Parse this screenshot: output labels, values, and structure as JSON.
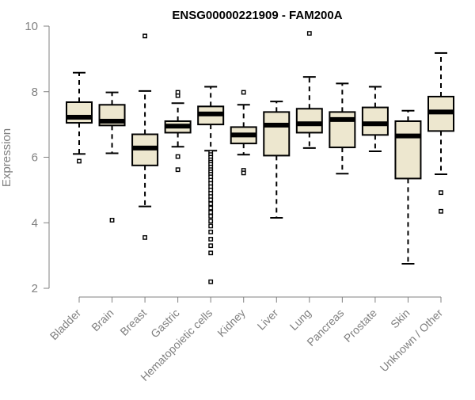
{
  "chart_data": {
    "type": "boxplot",
    "title": "ENSG00000221909 - FAM200A",
    "ylabel": "Expression",
    "ylim": [
      2,
      10
    ],
    "yticks": [
      "2",
      "4",
      "6",
      "8",
      "10"
    ],
    "grid": false,
    "colors": {
      "box_fill": "#ede7cf",
      "box_stroke": "#000000",
      "axis": "#808080",
      "tick_label": "#808080",
      "title": "#000000"
    },
    "categories": [
      "Bladder",
      "Brain",
      "Breast",
      "Gastric",
      "Hematopoietic cells",
      "Kidney",
      "Liver",
      "Lung",
      "Pancreas",
      "Prostate",
      "Skin",
      "Unknown / Other"
    ],
    "boxes": [
      {
        "category": "Bladder",
        "whisker_low": 6.1,
        "q1": 7.05,
        "median": 7.22,
        "q3": 7.68,
        "whisker_high": 8.58,
        "outliers": [
          5.88
        ]
      },
      {
        "category": "Brain",
        "whisker_low": 6.12,
        "q1": 6.97,
        "median": 7.1,
        "q3": 7.6,
        "whisker_high": 7.98,
        "outliers": [
          4.08
        ]
      },
      {
        "category": "Breast",
        "whisker_low": 4.5,
        "q1": 5.75,
        "median": 6.28,
        "q3": 6.7,
        "whisker_high": 8.02,
        "outliers": [
          3.55,
          9.7
        ]
      },
      {
        "category": "Gastric",
        "whisker_low": 6.32,
        "q1": 6.75,
        "median": 6.95,
        "q3": 7.1,
        "whisker_high": 7.65,
        "outliers": [
          6.02,
          5.62,
          7.88,
          7.98
        ]
      },
      {
        "category": "Hematopoietic cells",
        "whisker_low": 6.2,
        "q1": 7.0,
        "median": 7.32,
        "q3": 7.55,
        "whisker_high": 8.15,
        "outliers": [
          6.15,
          6.08,
          6.0,
          5.92,
          5.85,
          5.78,
          5.7,
          5.62,
          5.55,
          5.48,
          5.4,
          5.3,
          5.2,
          5.1,
          5.0,
          4.9,
          4.8,
          4.7,
          4.58,
          4.45,
          4.32,
          4.2,
          4.05,
          3.9,
          3.72,
          3.5,
          3.3,
          3.08,
          2.2
        ]
      },
      {
        "category": "Kidney",
        "whisker_low": 6.08,
        "q1": 6.42,
        "median": 6.68,
        "q3": 6.92,
        "whisker_high": 7.6,
        "outliers": [
          5.6,
          5.52,
          7.98
        ]
      },
      {
        "category": "Liver",
        "whisker_low": 4.15,
        "q1": 6.05,
        "median": 6.98,
        "q3": 7.38,
        "whisker_high": 7.7,
        "outliers": []
      },
      {
        "category": "Lung",
        "whisker_low": 6.28,
        "q1": 6.75,
        "median": 7.02,
        "q3": 7.48,
        "whisker_high": 8.45,
        "outliers": [
          9.78
        ]
      },
      {
        "category": "Pancreas",
        "whisker_low": 5.5,
        "q1": 6.3,
        "median": 7.15,
        "q3": 7.38,
        "whisker_high": 8.25,
        "outliers": []
      },
      {
        "category": "Prostate",
        "whisker_low": 6.18,
        "q1": 6.68,
        "median": 7.02,
        "q3": 7.52,
        "whisker_high": 8.15,
        "outliers": []
      },
      {
        "category": "Skin",
        "whisker_low": 2.75,
        "q1": 5.35,
        "median": 6.65,
        "q3": 7.1,
        "whisker_high": 7.42,
        "outliers": []
      },
      {
        "category": "Unknown / Other",
        "whisker_low": 5.48,
        "q1": 6.8,
        "median": 7.38,
        "q3": 7.85,
        "whisker_high": 9.18,
        "outliers": [
          4.92,
          4.35
        ]
      }
    ]
  }
}
